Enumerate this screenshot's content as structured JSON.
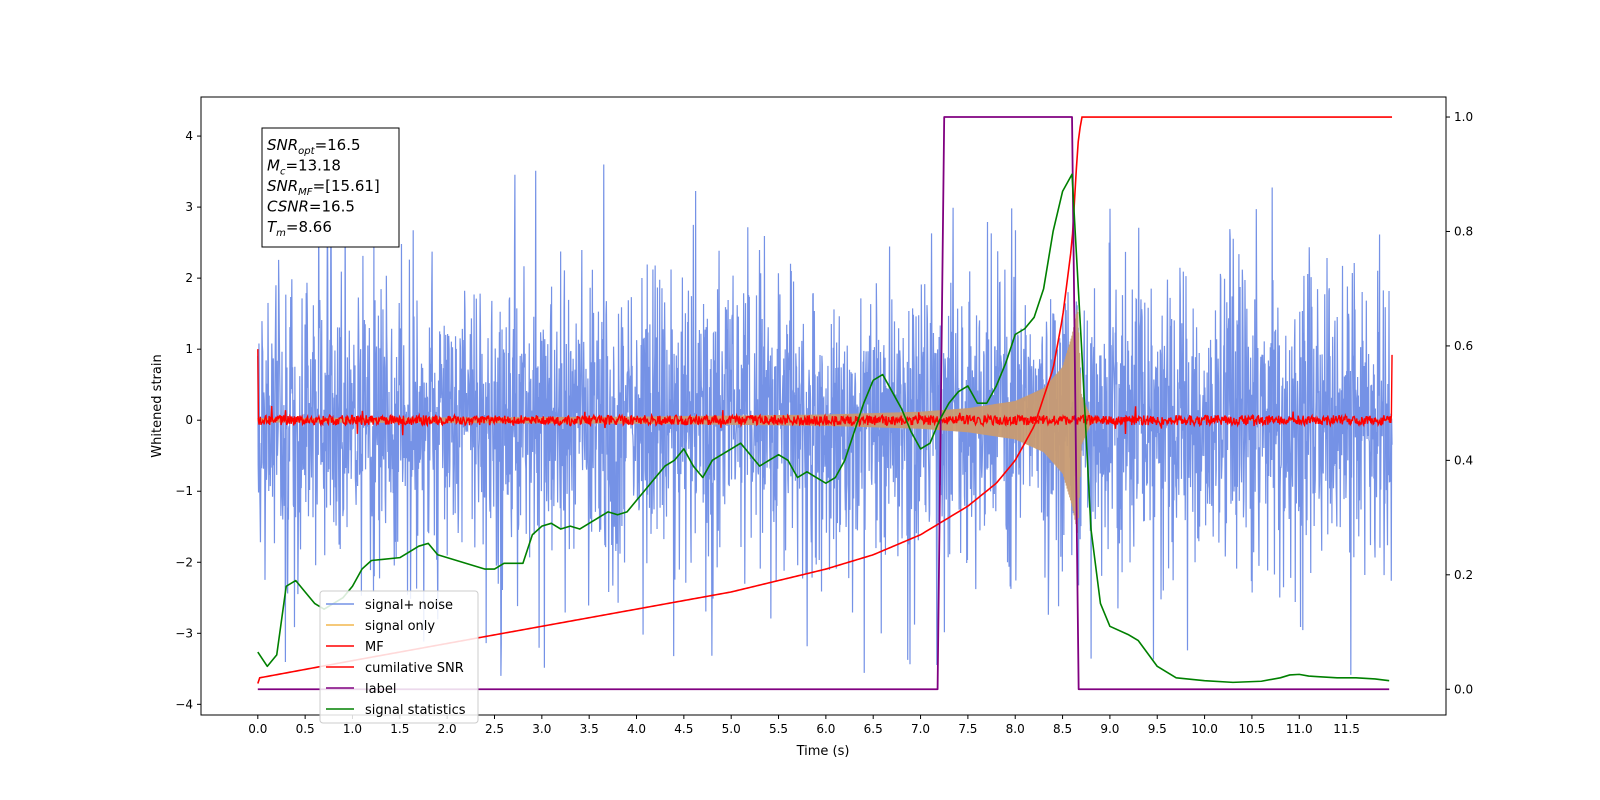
{
  "chart_data": {
    "type": "line",
    "xlabel": "Time (s)",
    "ylabel": "Whitened strain",
    "xlim": [
      -0.6,
      12.55
    ],
    "ylim_left": [
      -4.15,
      4.55
    ],
    "ylim_right": [
      -0.045,
      1.035
    ],
    "x_ticks": [
      0.0,
      0.5,
      1.0,
      1.5,
      2.0,
      2.5,
      3.0,
      3.5,
      4.0,
      4.5,
      5.0,
      5.5,
      6.0,
      6.5,
      7.0,
      7.5,
      8.0,
      8.5,
      9.0,
      9.5,
      10.0,
      10.5,
      11.0,
      11.5
    ],
    "x_tick_labels": [
      "0.0",
      "0.5",
      "1.0",
      "1.5",
      "2.0",
      "2.5",
      "3.0",
      "3.5",
      "4.0",
      "4.5",
      "5.0",
      "5.5",
      "6.0",
      "6.5",
      "7.0",
      "7.5",
      "8.0",
      "8.5",
      "9.0",
      "9.5",
      "10.0",
      "10.5",
      "11.0",
      "11.5"
    ],
    "y_left_ticks": [
      -4,
      -3,
      -2,
      -1,
      0,
      1,
      2,
      3,
      4
    ],
    "y_left_tick_labels": [
      "−4",
      "−3",
      "−2",
      "−1",
      "0",
      "1",
      "2",
      "3",
      "4"
    ],
    "y_right_ticks": [
      0.0,
      0.2,
      0.4,
      0.6,
      0.8,
      1.0
    ],
    "y_right_tick_labels": [
      "0.0",
      "0.2",
      "0.4",
      "0.6",
      "0.8",
      "1.0"
    ],
    "grid": false,
    "legend_position": "lower-left",
    "annotation": {
      "lines": [
        {
          "base": "SNR",
          "sub": "opt",
          "rest": "=16.5"
        },
        {
          "base": "M",
          "sub": "c",
          "rest": "=13.18"
        },
        {
          "base": "SNR",
          "sub": "MF",
          "rest": "=[15.61]"
        },
        {
          "base": "CSNR",
          "sub": "",
          "rest": "=16.5"
        },
        {
          "base": "T",
          "sub": "m",
          "rest": "=8.66"
        }
      ]
    },
    "series": [
      {
        "name": "signal+ noise",
        "axis": "left",
        "color": "#7592e6",
        "kind": "noise",
        "x_range": [
          0.0,
          11.98
        ],
        "typical_amplitude": 1.3,
        "peak_amplitude": 3.6
      },
      {
        "name": "signal only",
        "axis": "left",
        "color": "#f5c97a",
        "kind": "chirp",
        "x_range": [
          0.0,
          11.98
        ],
        "merger_time": 8.66,
        "envelope": {
          "x": [
            0.0,
            4.0,
            6.0,
            7.0,
            7.5,
            8.0,
            8.3,
            8.5,
            8.6,
            8.66,
            8.7,
            8.8,
            9.0
          ],
          "y": [
            0.03,
            0.05,
            0.08,
            0.12,
            0.17,
            0.27,
            0.45,
            0.75,
            1.2,
            1.6,
            0.35,
            0.05,
            0.0
          ]
        }
      },
      {
        "name": "MF",
        "axis": "left",
        "color": "#ff0000",
        "kind": "mf",
        "x_range": [
          0.0,
          11.98
        ],
        "start_value": 1.0,
        "end_value": 0.92,
        "noise_amplitude": 0.1
      },
      {
        "name": "cumilative SNR",
        "axis": "right",
        "color": "#ff0000",
        "x": [
          0.0,
          0.02,
          1.0,
          2.0,
          3.0,
          4.0,
          5.0,
          5.5,
          6.0,
          6.5,
          7.0,
          7.5,
          7.8,
          8.0,
          8.2,
          8.4,
          8.5,
          8.6,
          8.66,
          8.7,
          11.98
        ],
        "y": [
          0.01,
          0.02,
          0.05,
          0.08,
          0.11,
          0.14,
          0.17,
          0.19,
          0.21,
          0.235,
          0.27,
          0.32,
          0.36,
          0.4,
          0.46,
          0.56,
          0.65,
          0.78,
          0.95,
          1.0,
          1.0
        ]
      },
      {
        "name": "label",
        "axis": "right",
        "color": "#800080",
        "x": [
          0.0,
          7.18,
          7.25,
          8.6,
          8.67,
          11.95
        ],
        "y": [
          0.0,
          0.0,
          1.0,
          1.0,
          0.0,
          0.0
        ]
      },
      {
        "name": "signal statistics",
        "axis": "right",
        "color": "#008000",
        "x": [
          0.0,
          0.1,
          0.2,
          0.3,
          0.4,
          0.5,
          0.6,
          0.7,
          0.9,
          1.0,
          1.1,
          1.2,
          1.5,
          1.7,
          1.8,
          1.9,
          2.0,
          2.1,
          2.2,
          2.4,
          2.5,
          2.6,
          2.8,
          2.9,
          3.0,
          3.1,
          3.2,
          3.3,
          3.4,
          3.5,
          3.6,
          3.7,
          3.8,
          3.9,
          4.0,
          4.1,
          4.2,
          4.3,
          4.4,
          4.5,
          4.6,
          4.7,
          4.8,
          5.0,
          5.1,
          5.2,
          5.3,
          5.4,
          5.5,
          5.6,
          5.7,
          5.8,
          5.9,
          6.0,
          6.1,
          6.2,
          6.3,
          6.4,
          6.5,
          6.6,
          6.7,
          6.8,
          6.9,
          7.0,
          7.1,
          7.2,
          7.3,
          7.4,
          7.5,
          7.6,
          7.7,
          7.8,
          7.9,
          8.0,
          8.1,
          8.2,
          8.3,
          8.4,
          8.5,
          8.6,
          8.7,
          8.8,
          8.9,
          9.0,
          9.2,
          9.3,
          9.5,
          9.7,
          10.0,
          10.3,
          10.6,
          10.8,
          10.9,
          11.0,
          11.1,
          11.2,
          11.4,
          11.6,
          11.8,
          11.95
        ],
        "y": [
          0.065,
          0.04,
          0.06,
          0.18,
          0.19,
          0.17,
          0.15,
          0.14,
          0.16,
          0.18,
          0.21,
          0.225,
          0.23,
          0.25,
          0.255,
          0.235,
          0.23,
          0.225,
          0.22,
          0.21,
          0.21,
          0.22,
          0.22,
          0.27,
          0.285,
          0.29,
          0.28,
          0.285,
          0.28,
          0.29,
          0.3,
          0.31,
          0.305,
          0.31,
          0.33,
          0.35,
          0.37,
          0.39,
          0.4,
          0.42,
          0.39,
          0.37,
          0.4,
          0.42,
          0.43,
          0.41,
          0.39,
          0.4,
          0.41,
          0.4,
          0.37,
          0.38,
          0.37,
          0.36,
          0.37,
          0.4,
          0.45,
          0.5,
          0.54,
          0.55,
          0.52,
          0.49,
          0.45,
          0.42,
          0.43,
          0.47,
          0.5,
          0.52,
          0.53,
          0.5,
          0.5,
          0.53,
          0.57,
          0.62,
          0.63,
          0.65,
          0.7,
          0.8,
          0.87,
          0.9,
          0.6,
          0.28,
          0.15,
          0.11,
          0.095,
          0.085,
          0.04,
          0.02,
          0.015,
          0.012,
          0.014,
          0.02,
          0.025,
          0.026,
          0.023,
          0.022,
          0.02,
          0.02,
          0.018,
          0.015
        ]
      }
    ]
  }
}
